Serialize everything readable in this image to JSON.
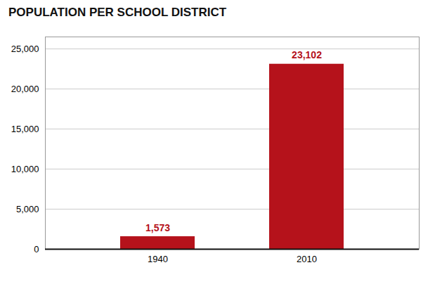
{
  "chart_data": {
    "type": "bar",
    "title": "POPULATION PER SCHOOL DISTRICT",
    "categories": [
      "1940",
      "2010"
    ],
    "values": [
      1573,
      23102
    ],
    "value_labels": [
      "1,573",
      "23,102"
    ],
    "color": "#b5121b",
    "ylim": [
      0,
      26500
    ],
    "yticks": [
      0,
      {
        "value": 5000,
        "label": "5,000"
      },
      {
        "value": 10000,
        "label": "10,000"
      },
      {
        "value": 15000,
        "label": "15,000"
      },
      {
        "value": 20000,
        "label": "20,000"
      },
      {
        "value": 25000,
        "label": "25,000"
      }
    ],
    "grid": true,
    "data_labels": true
  }
}
